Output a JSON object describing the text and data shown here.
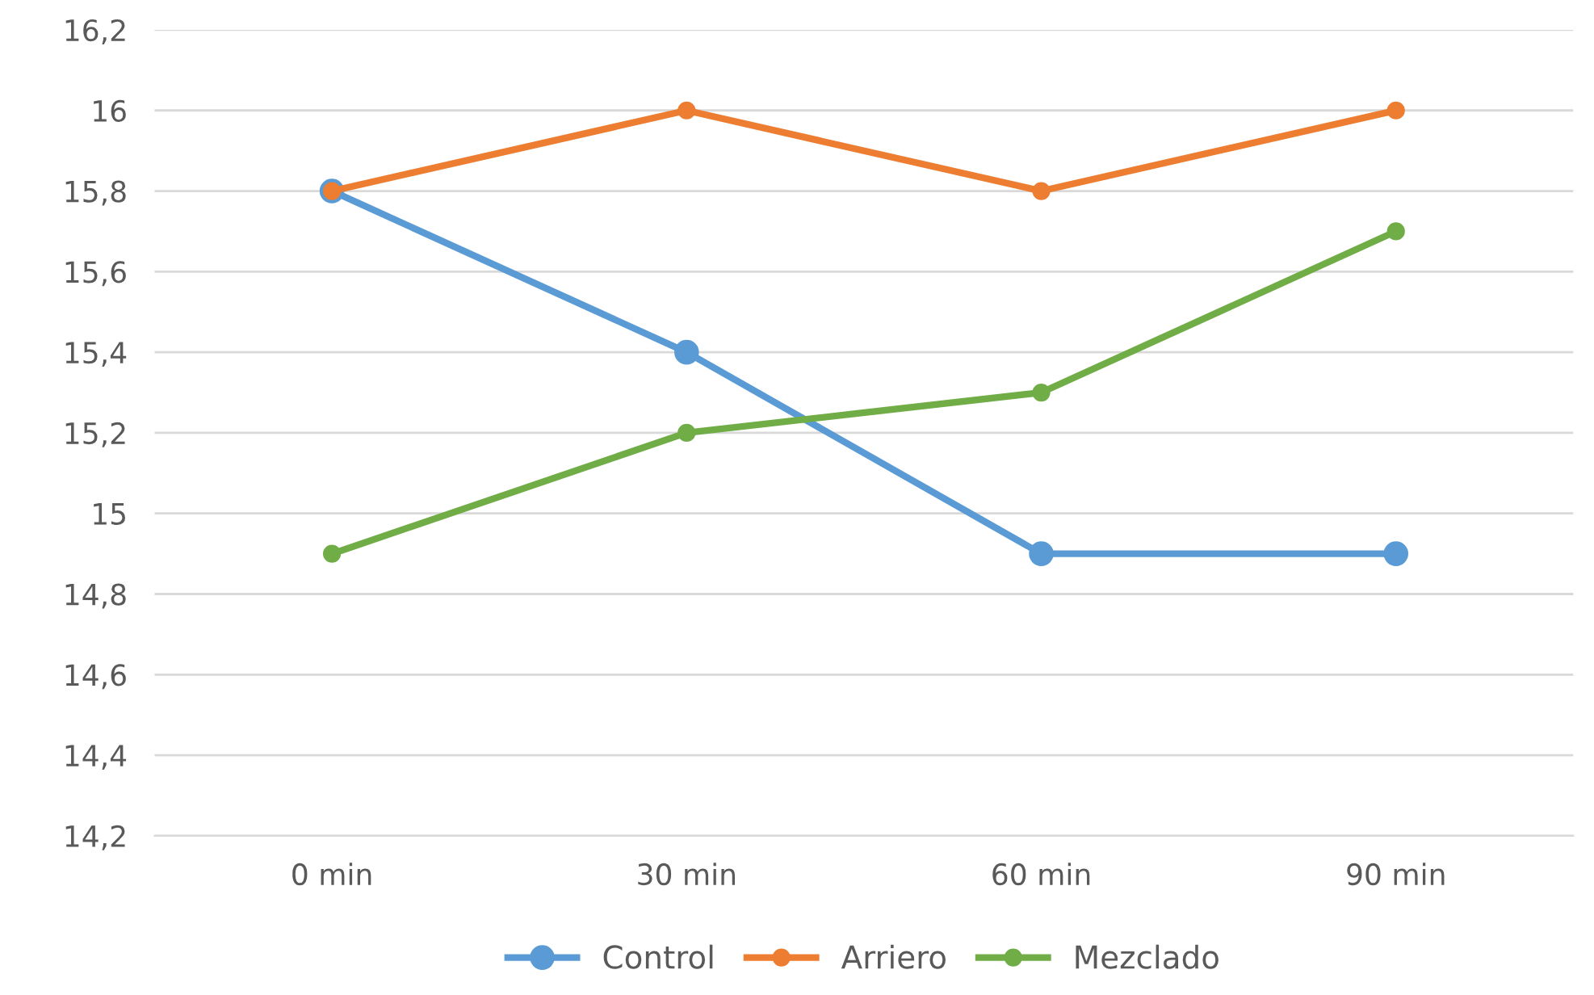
{
  "chart_data": {
    "type": "line",
    "categories": [
      "0 min",
      "30 min",
      "60 min",
      "90 min"
    ],
    "series": [
      {
        "name": "Control",
        "color": "#5b9bd5",
        "values": [
          15.8,
          15.4,
          14.9,
          14.9
        ]
      },
      {
        "name": "Arriero",
        "color": "#ed7d31",
        "values": [
          15.8,
          16,
          15.8,
          16
        ]
      },
      {
        "name": "Mezclado",
        "color": "#70ad47",
        "values": [
          14.9,
          15.2,
          15.3,
          15.7
        ]
      }
    ],
    "ylim": [
      14.2,
      16.2
    ],
    "yticks": [
      {
        "value": 14.2,
        "label": "14,2"
      },
      {
        "value": 14.4,
        "label": "14,4"
      },
      {
        "value": 14.6,
        "label": "14,6"
      },
      {
        "value": 14.8,
        "label": "14,8"
      },
      15,
      {
        "value": 15.2,
        "label": "15,2"
      },
      {
        "value": 15.4,
        "label": "15,4"
      },
      {
        "value": 15.6,
        "label": "15,6"
      },
      {
        "value": 15.8,
        "label": "15,8"
      },
      16,
      {
        "value": 16.2,
        "label": "16,2"
      }
    ],
    "grid": "y",
    "legend": "bottom",
    "marker": "circle",
    "line_style": "solid"
  }
}
